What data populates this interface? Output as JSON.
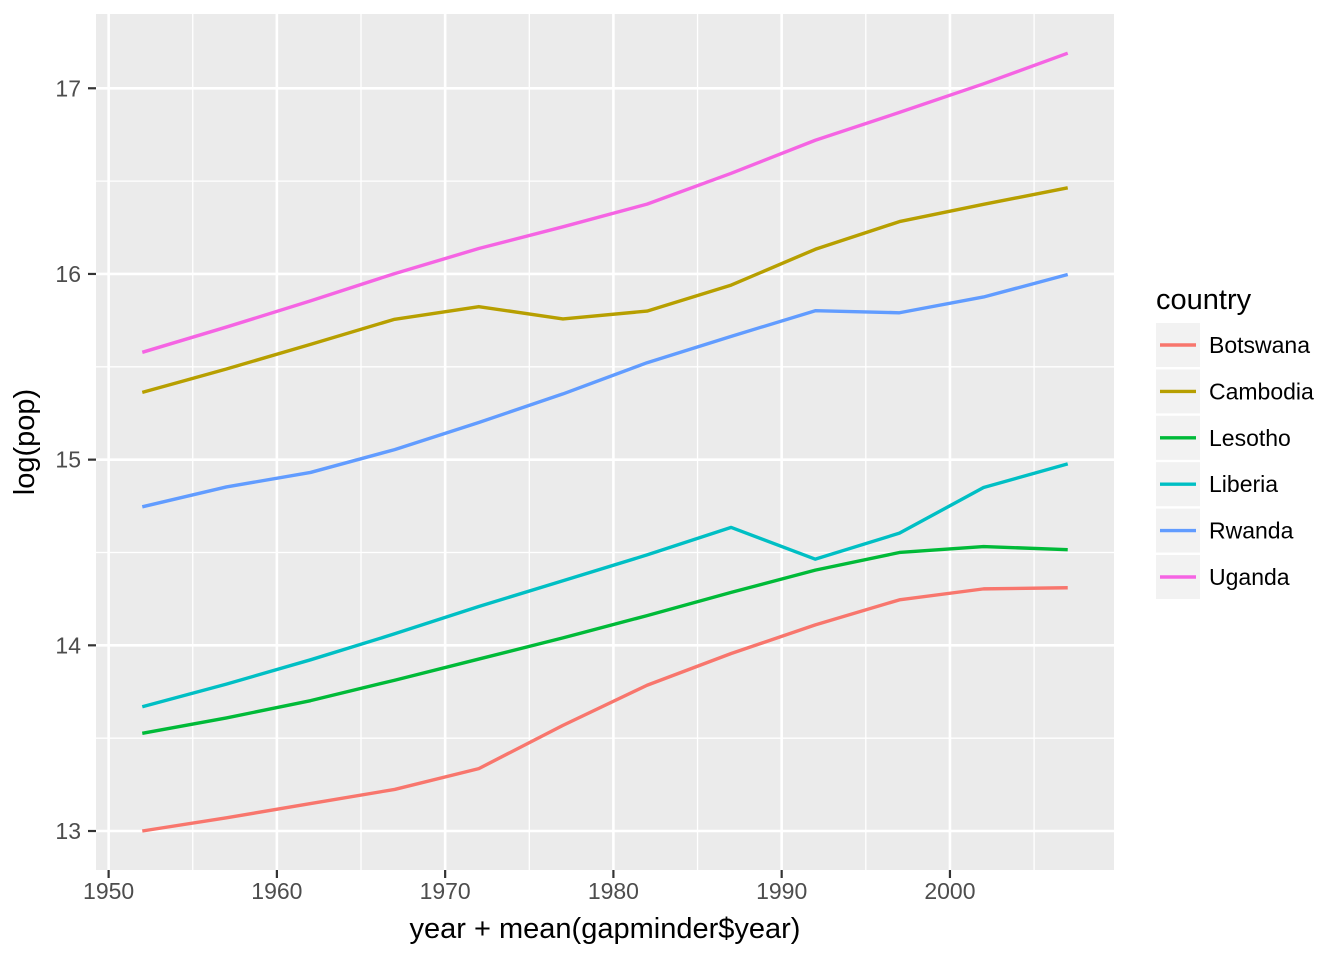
{
  "chart_data": {
    "type": "line",
    "title": "",
    "xlabel": "year + mean(gapminder$year)",
    "ylabel": "log(pop)",
    "legend_title": "country",
    "legend_position": "right",
    "grid": true,
    "x": [
      1952,
      1957,
      1962,
      1967,
      1972,
      1977,
      1982,
      1987,
      1992,
      1997,
      2002,
      2007
    ],
    "xlim": [
      1949.25,
      2009.75
    ],
    "ylim": [
      12.79,
      17.4
    ],
    "x_ticks": [
      1950,
      1960,
      1970,
      1980,
      1990,
      2000
    ],
    "x_minor_ticks": [
      1955,
      1965,
      1975,
      1985,
      1995,
      2005
    ],
    "y_ticks": [
      13,
      14,
      15,
      16,
      17
    ],
    "y_minor_ticks": [
      13.5,
      14.5,
      15.5,
      16.5
    ],
    "series": [
      {
        "name": "Botswana",
        "color": "#F8766D",
        "values": [
          13.0,
          13.071,
          13.148,
          13.224,
          13.336,
          13.569,
          13.785,
          13.956,
          14.11,
          14.245,
          14.304,
          14.31
        ]
      },
      {
        "name": "Cambodia",
        "color": "#B79F00",
        "values": [
          15.362,
          15.488,
          15.621,
          15.756,
          15.824,
          15.758,
          15.8,
          15.94,
          16.133,
          16.282,
          16.375,
          16.464
        ]
      },
      {
        "name": "Lesotho",
        "color": "#00BA38",
        "values": [
          13.526,
          13.609,
          13.702,
          13.812,
          13.926,
          14.04,
          14.16,
          14.285,
          14.405,
          14.5,
          14.532,
          14.515
        ]
      },
      {
        "name": "Liberia",
        "color": "#00BFC4",
        "values": [
          13.669,
          13.791,
          13.922,
          14.062,
          14.209,
          14.348,
          14.487,
          14.635,
          14.464,
          14.604,
          14.85,
          14.977
        ]
      },
      {
        "name": "Rwanda",
        "color": "#619CFF",
        "values": [
          14.746,
          14.853,
          14.931,
          15.054,
          15.2,
          15.354,
          15.522,
          15.664,
          15.802,
          15.791,
          15.876,
          15.997
        ]
      },
      {
        "name": "Uganda",
        "color": "#F564E3",
        "values": [
          15.578,
          15.714,
          15.855,
          16.002,
          16.137,
          16.254,
          16.376,
          16.542,
          16.72,
          16.87,
          17.024,
          17.189
        ]
      }
    ],
    "colors": {
      "panel_bg": "#EBEBEB",
      "grid": "#FFFFFF",
      "tick_text": "#4D4D4D",
      "axis_title": "#000000",
      "tick_mark": "#333333",
      "legend_key_bg": "#F2F2F2"
    }
  }
}
